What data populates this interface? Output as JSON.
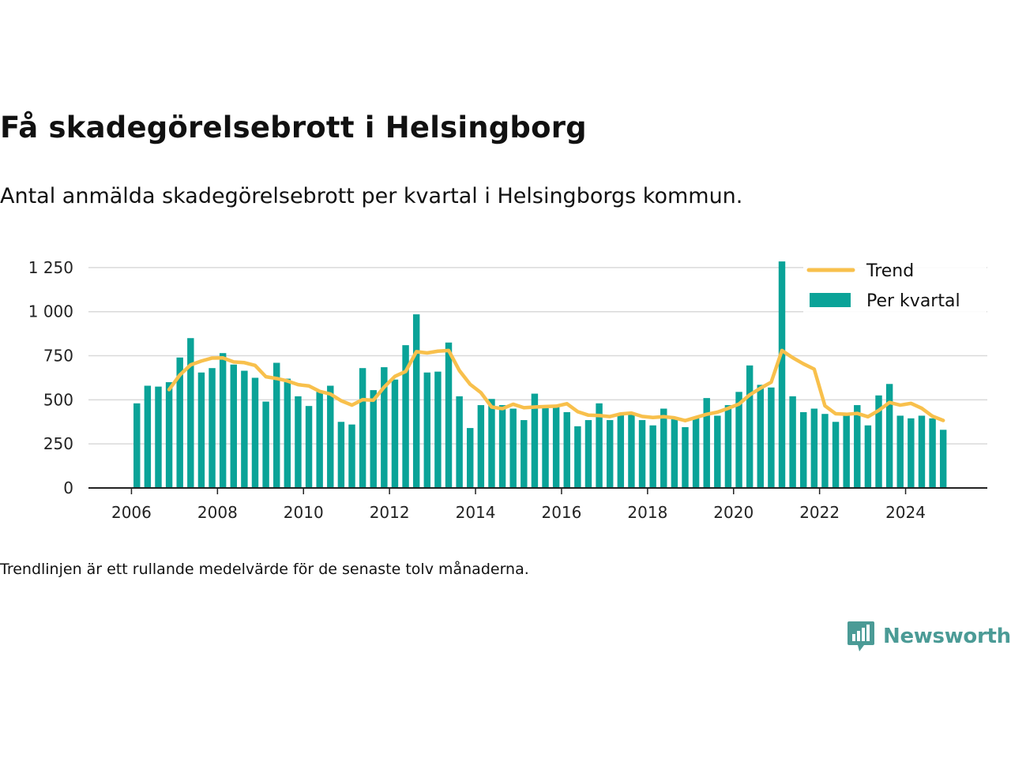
{
  "title": "Få skadegörelsebrott i Helsingborg",
  "subtitle": "Antal anmälda skadegörelsebrott per kvartal i Helsingborgs kommun.",
  "footnote": "Trendlinjen är ett rullande medelvärde för de senaste tolv månaderna.",
  "brand": {
    "name": "Newsworthy",
    "logo_icon": "newsworthy-chart-bubble-icon"
  },
  "colors": {
    "bars": "#0aa398",
    "trend": "#f8c04c",
    "grid": "#d9d9d9",
    "axis": "#222222"
  },
  "chart_data": {
    "type": "bar",
    "xlim": [
      2005.0,
      2025.9
    ],
    "ylim": [
      0,
      1290
    ],
    "y_ticks": [
      {
        "value": 0,
        "label": "0"
      },
      {
        "value": 250,
        "label": "250"
      },
      {
        "value": 500,
        "label": "500"
      },
      {
        "value": 750,
        "label": "750"
      },
      {
        "value": 1000,
        "label": "1 000"
      },
      {
        "value": 1250,
        "label": "1 250"
      }
    ],
    "x_ticks": [
      {
        "value": 2006,
        "label": "2006"
      },
      {
        "value": 2008,
        "label": "2008"
      },
      {
        "value": 2010,
        "label": "2010"
      },
      {
        "value": 2012,
        "label": "2012"
      },
      {
        "value": 2014,
        "label": "2014"
      },
      {
        "value": 2016,
        "label": "2016"
      },
      {
        "value": 2018,
        "label": "2018"
      },
      {
        "value": 2020,
        "label": "2020"
      },
      {
        "value": 2022,
        "label": "2022"
      },
      {
        "value": 2024,
        "label": "2024"
      }
    ],
    "grid": true,
    "legend": {
      "position": "top-right",
      "items": [
        {
          "label": "Trend",
          "kind": "line"
        },
        {
          "label": "Per kvartal",
          "kind": "bar"
        }
      ]
    },
    "quarters_start": [
      2006,
      1
    ],
    "series": [
      {
        "name": "Per kvartal",
        "type": "bar",
        "values": [
          480,
          580,
          575,
          600,
          740,
          850,
          655,
          680,
          765,
          700,
          665,
          625,
          490,
          710,
          620,
          520,
          465,
          545,
          580,
          375,
          360,
          680,
          555,
          685,
          615,
          810,
          985,
          655,
          660,
          825,
          520,
          340,
          470,
          505,
          470,
          450,
          385,
          535,
          455,
          465,
          430,
          350,
          385,
          480,
          385,
          415,
          420,
          385,
          355,
          450,
          390,
          345,
          405,
          510,
          410,
          470,
          545,
          695,
          585,
          570,
          1285,
          520,
          430,
          450,
          420,
          375,
          415,
          470,
          355,
          525,
          590,
          410,
          395,
          410,
          395,
          330
        ]
      },
      {
        "name": "Trend",
        "type": "line",
        "start_index": 3,
        "values": [
          558,
          641,
          698,
          720,
          737,
          738,
          715,
          711,
          695,
          631,
          621,
          607,
          586,
          579,
          548,
          533,
          495,
          470,
          501,
          498,
          572,
          633,
          661,
          773,
          766,
          776,
          780,
          666,
          588,
          541,
          459,
          450,
          475,
          455,
          459,
          462,
          464,
          478,
          433,
          413,
          411,
          405,
          420,
          425,
          406,
          400,
          404,
          398,
          382,
          400,
          418,
          430,
          452,
          476,
          528,
          566,
          600,
          780,
          739,
          704,
          674,
          466,
          421,
          418,
          423,
          404,
          440,
          485,
          470,
          480,
          452,
          407,
          383
        ]
      }
    ]
  }
}
